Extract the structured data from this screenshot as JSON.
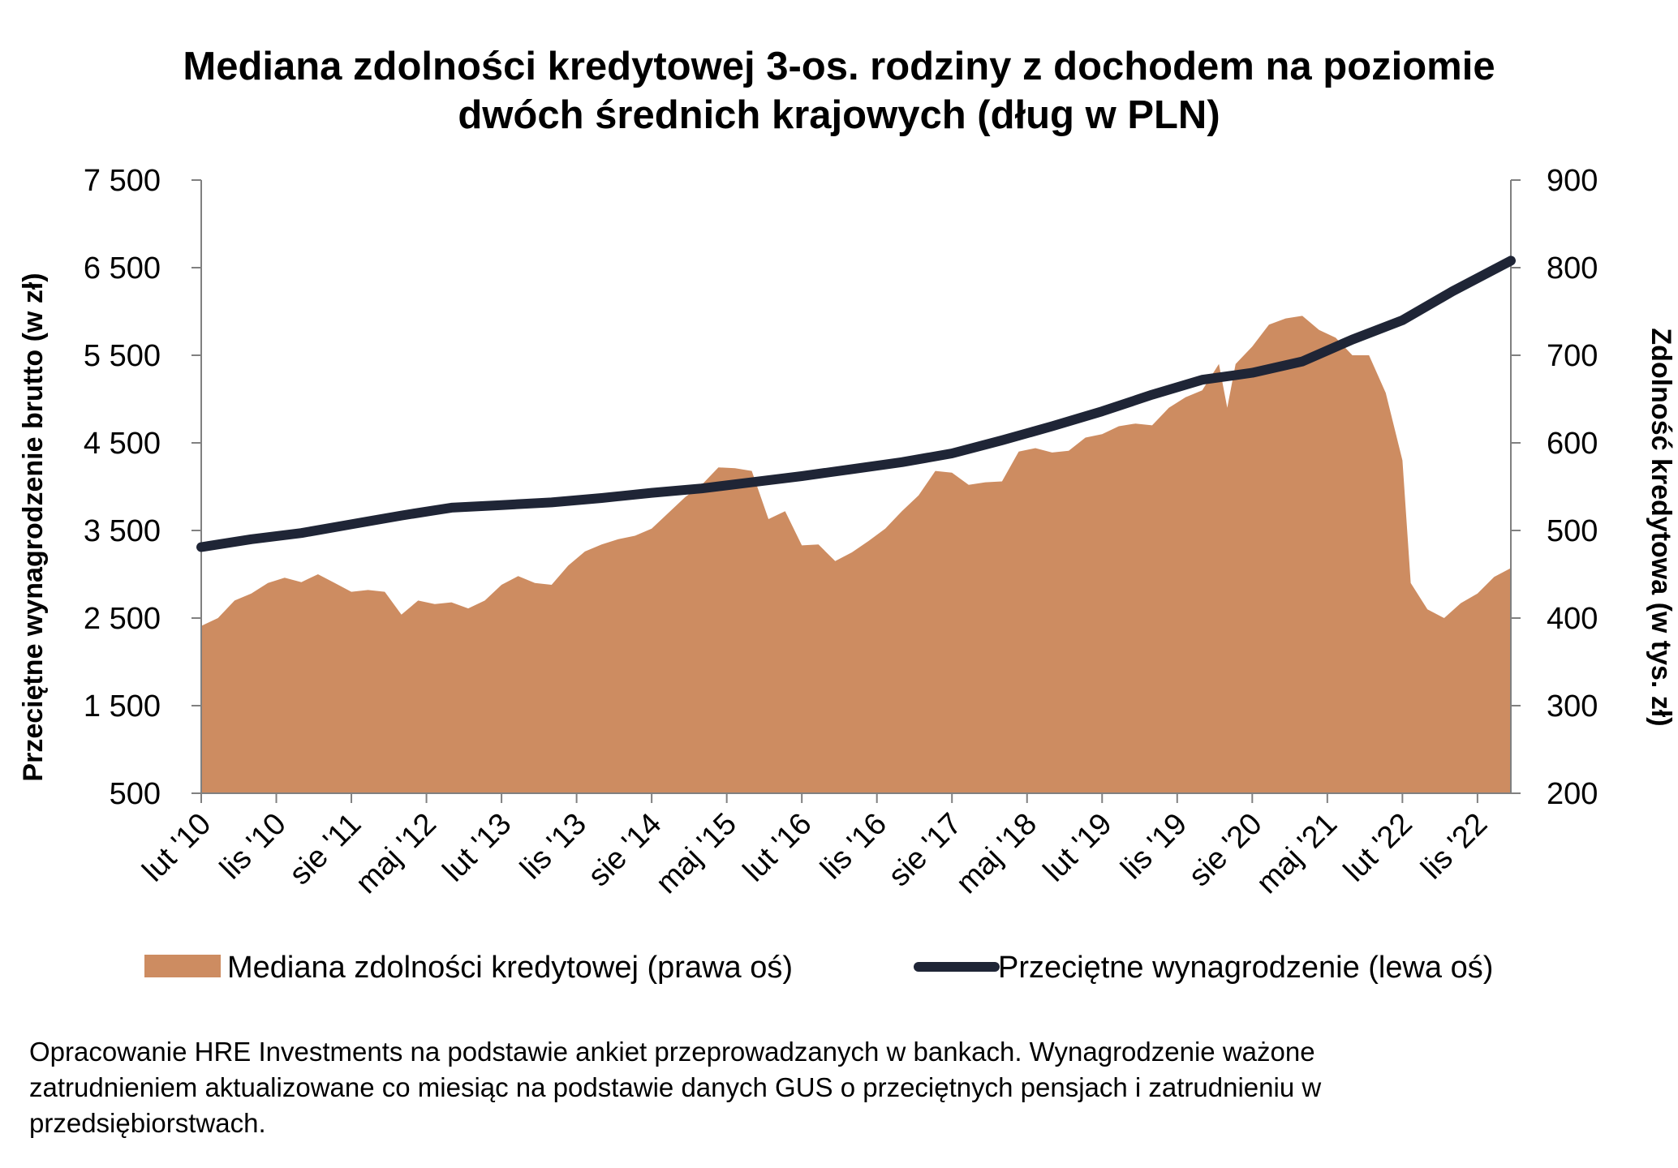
{
  "title_lines": [
    "Mediana zdolności kredytowej 3-os. rodziny z dochodem na poziomie",
    "dwóch średnich krajowych (dług w PLN)"
  ],
  "footnote_lines": [
    "Opracowanie HRE Investments na podstawie ankiet przeprowadzanych w bankach. Wynagrodzenie ważone",
    "zatrudnieniem aktualizowane co miesiąc na podstawie danych GUS o przeciętnych pensjach i zatrudnieniu w",
    "przedsiębiorstwach."
  ],
  "colors": {
    "area": "#CD8C61",
    "line": "#1F2536",
    "axis": "#808080"
  },
  "chart_data": {
    "type": "area",
    "title": "Mediana zdolności kredytowej 3-os. rodziny z dochodem na poziomie dwóch średnich krajowych (dług w PLN)",
    "ylabel_left": "Przeciętne wynagrodzenie brutto (w zł)",
    "ylabel_right": "Zdolność kredytowa (w tys. zł)",
    "ylim_left": [
      500,
      7500
    ],
    "ylim_right": [
      200,
      900
    ],
    "yticks_left": [
      "7 500",
      "6 500",
      "5 500",
      "4 500",
      "3 500",
      "2 500",
      "1 500",
      "500"
    ],
    "yticks_right": [
      "900",
      "800",
      "700",
      "600",
      "500",
      "400",
      "300",
      "200"
    ],
    "x_start": "2010-02",
    "x_end": "2023-03",
    "xtick_labels": [
      "lut '10",
      "lis '10",
      "sie '11",
      "maj '12",
      "lut '13",
      "lis '13",
      "sie '14",
      "maj '15",
      "lut '16",
      "lis '16",
      "sie '17",
      "maj '18",
      "lut '19",
      "lis '19",
      "sie '20",
      "maj '21",
      "lut '22",
      "lis '22"
    ],
    "grid": false,
    "legend_position": "bottom",
    "series": [
      {
        "name": "Mediana zdolności kredytowej (prawa oś)",
        "type": "area",
        "axis": "right",
        "values": [
          {
            "x": "2010-02",
            "y": 391
          },
          {
            "x": "2010-04",
            "y": 400
          },
          {
            "x": "2010-06",
            "y": 420
          },
          {
            "x": "2010-08",
            "y": 428
          },
          {
            "x": "2010-10",
            "y": 440
          },
          {
            "x": "2010-12",
            "y": 446
          },
          {
            "x": "2011-02",
            "y": 441
          },
          {
            "x": "2011-04",
            "y": 450
          },
          {
            "x": "2011-06",
            "y": 440
          },
          {
            "x": "2011-08",
            "y": 430
          },
          {
            "x": "2011-10",
            "y": 432
          },
          {
            "x": "2011-12",
            "y": 430
          },
          {
            "x": "2012-02",
            "y": 404
          },
          {
            "x": "2012-04",
            "y": 420
          },
          {
            "x": "2012-06",
            "y": 416
          },
          {
            "x": "2012-08",
            "y": 418
          },
          {
            "x": "2012-10",
            "y": 411
          },
          {
            "x": "2012-12",
            "y": 420
          },
          {
            "x": "2013-02",
            "y": 438
          },
          {
            "x": "2013-04",
            "y": 448
          },
          {
            "x": "2013-06",
            "y": 440
          },
          {
            "x": "2013-08",
            "y": 438
          },
          {
            "x": "2013-10",
            "y": 460
          },
          {
            "x": "2013-12",
            "y": 476
          },
          {
            "x": "2014-02",
            "y": 484
          },
          {
            "x": "2014-04",
            "y": 490
          },
          {
            "x": "2014-06",
            "y": 494
          },
          {
            "x": "2014-08",
            "y": 502
          },
          {
            "x": "2014-10",
            "y": 520
          },
          {
            "x": "2014-12",
            "y": 538
          },
          {
            "x": "2015-02",
            "y": 552
          },
          {
            "x": "2015-04",
            "y": 572
          },
          {
            "x": "2015-06",
            "y": 571
          },
          {
            "x": "2015-08",
            "y": 568
          },
          {
            "x": "2015-10",
            "y": 513
          },
          {
            "x": "2015-12",
            "y": 522
          },
          {
            "x": "2016-02",
            "y": 483
          },
          {
            "x": "2016-04",
            "y": 484
          },
          {
            "x": "2016-06",
            "y": 465
          },
          {
            "x": "2016-08",
            "y": 475
          },
          {
            "x": "2016-10",
            "y": 488
          },
          {
            "x": "2016-12",
            "y": 502
          },
          {
            "x": "2017-02",
            "y": 522
          },
          {
            "x": "2017-04",
            "y": 540
          },
          {
            "x": "2017-06",
            "y": 568
          },
          {
            "x": "2017-08",
            "y": 566
          },
          {
            "x": "2017-10",
            "y": 552
          },
          {
            "x": "2017-12",
            "y": 555
          },
          {
            "x": "2018-02",
            "y": 556
          },
          {
            "x": "2018-04",
            "y": 590
          },
          {
            "x": "2018-06",
            "y": 594
          },
          {
            "x": "2018-08",
            "y": 589
          },
          {
            "x": "2018-10",
            "y": 591
          },
          {
            "x": "2018-12",
            "y": 606
          },
          {
            "x": "2019-02",
            "y": 610
          },
          {
            "x": "2019-04",
            "y": 619
          },
          {
            "x": "2019-06",
            "y": 622
          },
          {
            "x": "2019-08",
            "y": 620
          },
          {
            "x": "2019-10",
            "y": 640
          },
          {
            "x": "2019-12",
            "y": 652
          },
          {
            "x": "2020-02",
            "y": 660
          },
          {
            "x": "2020-04",
            "y": 690
          },
          {
            "x": "2020-05",
            "y": 640
          },
          {
            "x": "2020-06",
            "y": 690
          },
          {
            "x": "2020-08",
            "y": 710
          },
          {
            "x": "2020-10",
            "y": 735
          },
          {
            "x": "2020-12",
            "y": 742
          },
          {
            "x": "2021-02",
            "y": 745
          },
          {
            "x": "2021-04",
            "y": 729
          },
          {
            "x": "2021-06",
            "y": 720
          },
          {
            "x": "2021-08",
            "y": 700
          },
          {
            "x": "2021-10",
            "y": 700
          },
          {
            "x": "2021-12",
            "y": 657
          },
          {
            "x": "2022-02",
            "y": 580
          },
          {
            "x": "2022-03",
            "y": 440
          },
          {
            "x": "2022-05",
            "y": 410
          },
          {
            "x": "2022-07",
            "y": 400
          },
          {
            "x": "2022-09",
            "y": 417
          },
          {
            "x": "2022-11",
            "y": 428
          },
          {
            "x": "2023-01",
            "y": 447
          },
          {
            "x": "2023-03",
            "y": 457
          }
        ]
      },
      {
        "name": "Przeciętne wynagrodzenie (lewa oś)",
        "type": "line",
        "axis": "left",
        "values": [
          {
            "x": "2010-02",
            "y": 3310
          },
          {
            "x": "2010-08",
            "y": 3400
          },
          {
            "x": "2011-02",
            "y": 3470
          },
          {
            "x": "2011-08",
            "y": 3570
          },
          {
            "x": "2012-02",
            "y": 3670
          },
          {
            "x": "2012-08",
            "y": 3760
          },
          {
            "x": "2013-02",
            "y": 3790
          },
          {
            "x": "2013-08",
            "y": 3820
          },
          {
            "x": "2014-02",
            "y": 3870
          },
          {
            "x": "2014-08",
            "y": 3930
          },
          {
            "x": "2015-02",
            "y": 3980
          },
          {
            "x": "2015-08",
            "y": 4050
          },
          {
            "x": "2016-02",
            "y": 4120
          },
          {
            "x": "2016-08",
            "y": 4200
          },
          {
            "x": "2017-02",
            "y": 4280
          },
          {
            "x": "2017-08",
            "y": 4380
          },
          {
            "x": "2018-02",
            "y": 4530
          },
          {
            "x": "2018-08",
            "y": 4690
          },
          {
            "x": "2019-02",
            "y": 4860
          },
          {
            "x": "2019-08",
            "y": 5050
          },
          {
            "x": "2020-02",
            "y": 5220
          },
          {
            "x": "2020-08",
            "y": 5300
          },
          {
            "x": "2021-02",
            "y": 5430
          },
          {
            "x": "2021-08",
            "y": 5680
          },
          {
            "x": "2022-02",
            "y": 5900
          },
          {
            "x": "2022-08",
            "y": 6230
          },
          {
            "x": "2023-03",
            "y": 6580
          }
        ]
      }
    ]
  }
}
